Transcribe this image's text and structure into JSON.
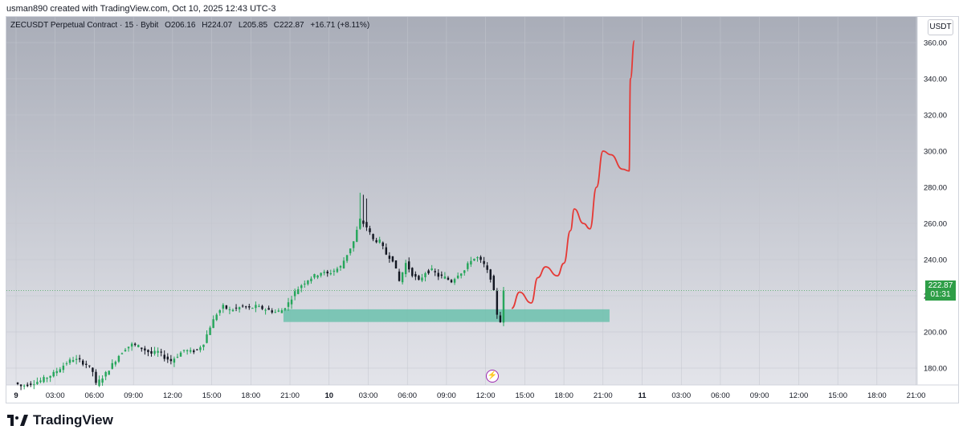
{
  "header": {
    "attribution": "usman890 created with TradingView.com, Oct 10, 2025 12:43 UTC-3"
  },
  "symbol": {
    "title": "ZECUSDT Perpetual Contract · 15 · Bybit",
    "open": "O206.16",
    "high": "H224.07",
    "low": "L205.85",
    "close": "C222.87",
    "change": "+16.71 (+8.11%)"
  },
  "currency_button": "USDT",
  "last_price": {
    "value": "222.87",
    "countdown": "01:31"
  },
  "brand": "TradingView",
  "colors": {
    "up": "#26a65b",
    "down": "#131722",
    "zone": "#6cc1ad",
    "projection": "#e53935",
    "price_tag": "#2e9e47",
    "background_top": "#a9adb8",
    "background_bottom": "#e3e4ea"
  },
  "chart_data": {
    "type": "candlestick",
    "interval": "15",
    "y_axis": {
      "ticks": [
        180,
        200,
        220,
        240,
        260,
        280,
        300,
        320,
        340,
        360
      ],
      "tick_labels": [
        "180.00",
        "200.00",
        "220.00",
        "240.00",
        "260.00",
        "280.00",
        "300.00",
        "320.00",
        "340.00",
        "360.00"
      ],
      "ylim": [
        168,
        368
      ]
    },
    "x_axis": {
      "tick_labels": [
        "9",
        "03:00",
        "06:00",
        "09:00",
        "12:00",
        "15:00",
        "18:00",
        "21:00",
        "10",
        "03:00",
        "06:00",
        "09:00",
        "12:00",
        "15:00",
        "18:00",
        "21:00",
        "11",
        "03:00",
        "06:00",
        "09:00",
        "12:00",
        "15:00",
        "18:00",
        "21:00"
      ],
      "hours_from_oct9": [
        0,
        3,
        6,
        9,
        12,
        15,
        18,
        21,
        24,
        27,
        30,
        33,
        36,
        39,
        42,
        45,
        48,
        51,
        54,
        57,
        60,
        63,
        66,
        69
      ]
    },
    "price_path": [
      [
        0,
        172
      ],
      [
        0.5,
        170
      ],
      [
        1,
        171
      ],
      [
        1.5,
        172
      ],
      [
        2,
        173
      ],
      [
        2.5,
        175
      ],
      [
        3,
        177
      ],
      [
        3.5,
        180
      ],
      [
        4,
        183
      ],
      [
        4.5,
        185
      ],
      [
        5,
        184
      ],
      [
        5.5,
        182
      ],
      [
        6,
        178
      ],
      [
        6.25,
        171
      ],
      [
        6.5,
        173
      ],
      [
        7,
        177
      ],
      [
        7.5,
        182
      ],
      [
        8,
        187
      ],
      [
        8.5,
        191
      ],
      [
        9,
        193
      ],
      [
        9.5,
        192
      ],
      [
        10,
        190
      ],
      [
        10.5,
        188
      ],
      [
        11,
        189
      ],
      [
        11.5,
        186
      ],
      [
        12,
        184
      ],
      [
        12.5,
        187
      ],
      [
        13,
        190
      ],
      [
        13.5,
        189
      ],
      [
        14,
        190
      ],
      [
        14.5,
        194
      ],
      [
        15,
        203
      ],
      [
        15.5,
        210
      ],
      [
        16,
        214
      ],
      [
        16.5,
        212
      ],
      [
        17,
        213
      ],
      [
        17.5,
        214
      ],
      [
        18,
        213
      ],
      [
        18.5,
        214
      ],
      [
        19,
        213
      ],
      [
        19.5,
        212
      ],
      [
        20,
        211
      ],
      [
        20.5,
        212
      ],
      [
        21,
        216
      ],
      [
        21.5,
        222
      ],
      [
        22,
        226
      ],
      [
        22.5,
        229
      ],
      [
        23,
        231
      ],
      [
        23.5,
        233
      ],
      [
        24,
        232
      ],
      [
        24.5,
        234
      ],
      [
        25,
        236
      ],
      [
        25.5,
        243
      ],
      [
        26,
        250
      ],
      [
        26.5,
        262
      ],
      [
        27,
        258
      ],
      [
        27.5,
        251
      ],
      [
        28,
        250
      ],
      [
        28.5,
        243
      ],
      [
        29,
        240
      ],
      [
        29.5,
        228
      ],
      [
        30,
        238
      ],
      [
        30.5,
        232
      ],
      [
        31,
        228
      ],
      [
        31.5,
        233
      ],
      [
        32,
        234
      ],
      [
        32.5,
        231
      ],
      [
        33,
        230
      ],
      [
        33.5,
        228
      ],
      [
        34,
        232
      ],
      [
        34.5,
        234
      ],
      [
        35,
        240
      ],
      [
        35.5,
        241
      ],
      [
        36,
        237
      ],
      [
        36.5,
        230
      ],
      [
        36.75,
        222
      ],
      [
        37,
        210
      ],
      [
        37.25,
        206
      ],
      [
        37.5,
        222.87
      ]
    ],
    "candle_interval_hours": 0.25,
    "support_zone": {
      "low": 205.5,
      "high": 212.5,
      "from_hour": 20.5,
      "to_hour": 45.5
    },
    "projection_path": [
      [
        38,
        213
      ],
      [
        38.6,
        222
      ],
      [
        39.5,
        216
      ],
      [
        40,
        230
      ],
      [
        40.6,
        236
      ],
      [
        41.5,
        231
      ],
      [
        42,
        238
      ],
      [
        42.5,
        256
      ],
      [
        42.8,
        268
      ],
      [
        43.5,
        260
      ],
      [
        44,
        257
      ],
      [
        44.5,
        280
      ],
      [
        45,
        300
      ],
      [
        45.6,
        298
      ],
      [
        46.5,
        290
      ],
      [
        47,
        289
      ],
      [
        47.1,
        340
      ],
      [
        47.4,
        361
      ]
    ],
    "last_price": 222.87
  }
}
